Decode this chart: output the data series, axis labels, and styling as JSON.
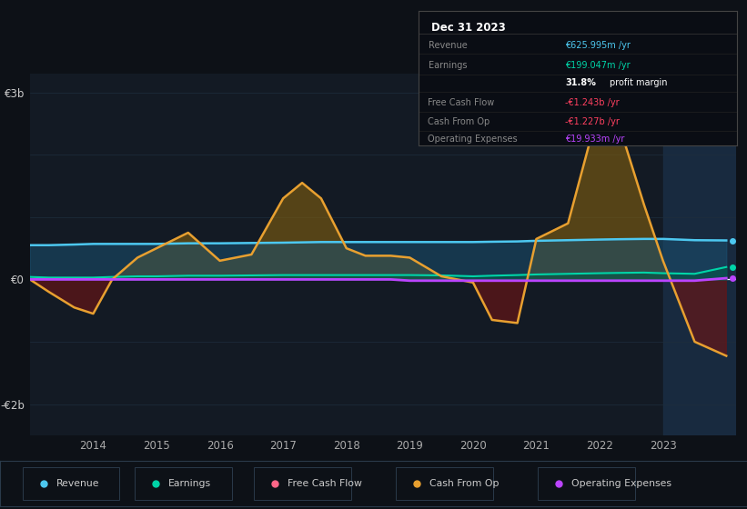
{
  "bg_color": "#0d1117",
  "plot_bg_color": "#131a24",
  "grid_color": "#1e2d3d",
  "years": [
    2013.0,
    2013.3,
    2013.7,
    2014.0,
    2014.3,
    2014.7,
    2015.0,
    2015.5,
    2016.0,
    2016.5,
    2017.0,
    2017.3,
    2017.6,
    2018.0,
    2018.3,
    2018.7,
    2019.0,
    2019.5,
    2020.0,
    2020.3,
    2020.7,
    2021.0,
    2021.5,
    2022.0,
    2022.3,
    2022.7,
    2023.0,
    2023.5,
    2024.0
  ],
  "revenue": [
    0.55,
    0.55,
    0.56,
    0.57,
    0.57,
    0.57,
    0.57,
    0.58,
    0.58,
    0.585,
    0.59,
    0.595,
    0.6,
    0.6,
    0.6,
    0.6,
    0.6,
    0.6,
    0.6,
    0.605,
    0.61,
    0.62,
    0.63,
    0.64,
    0.645,
    0.65,
    0.65,
    0.63,
    0.626
  ],
  "earnings": [
    0.04,
    0.03,
    0.03,
    0.03,
    0.04,
    0.05,
    0.05,
    0.06,
    0.06,
    0.065,
    0.07,
    0.07,
    0.07,
    0.07,
    0.07,
    0.07,
    0.07,
    0.065,
    0.05,
    0.06,
    0.07,
    0.08,
    0.09,
    0.1,
    0.105,
    0.11,
    0.1,
    0.09,
    0.199
  ],
  "cash_from_op": [
    0.0,
    -0.2,
    -0.45,
    -0.55,
    0.0,
    0.35,
    0.5,
    0.75,
    0.3,
    0.4,
    1.3,
    1.55,
    1.3,
    0.5,
    0.38,
    0.38,
    0.35,
    0.05,
    -0.05,
    -0.65,
    -0.7,
    0.65,
    0.9,
    2.8,
    2.5,
    1.2,
    0.3,
    -1.0,
    -1.227
  ],
  "free_cash_flow": [
    0.0,
    -0.2,
    -0.45,
    -0.55,
    0.0,
    0.32,
    0.47,
    0.72,
    0.27,
    0.37,
    1.25,
    1.5,
    1.25,
    0.47,
    0.35,
    0.35,
    0.3,
    0.02,
    -0.07,
    -0.67,
    -0.72,
    0.62,
    0.87,
    2.75,
    2.45,
    1.15,
    0.25,
    -1.05,
    -1.243
  ],
  "operating_expenses": [
    0.0,
    0.0,
    0.0,
    0.0,
    0.0,
    0.0,
    0.0,
    0.0,
    0.0,
    0.0,
    0.0,
    0.0,
    0.0,
    0.0,
    0.0,
    0.0,
    -0.02,
    -0.02,
    -0.02,
    -0.02,
    -0.02,
    -0.02,
    -0.02,
    -0.02,
    -0.02,
    -0.02,
    -0.02,
    -0.02,
    0.01993
  ],
  "revenue_color": "#4dc8f0",
  "earnings_color": "#00d4a8",
  "cash_from_op_color": "#e8a030",
  "free_cash_flow_color": "#ff4060",
  "operating_expenses_color": "#bb44ff",
  "revenue_fill_color": "#1a5070",
  "earnings_fill_color": "#005a48",
  "cash_from_op_fill_pos_color": "#7a5a10",
  "cash_from_op_fill_neg_color": "#6a1515",
  "ylim_min": -2.5,
  "ylim_max": 3.3,
  "ytick_vals": [
    -2,
    0,
    3
  ],
  "ytick_labels": [
    "-€2b",
    "€0",
    "€3b"
  ],
  "xtick_years": [
    2014,
    2015,
    2016,
    2017,
    2018,
    2019,
    2020,
    2021,
    2022,
    2023
  ],
  "legend_items": [
    "Revenue",
    "Earnings",
    "Free Cash Flow",
    "Cash From Op",
    "Operating Expenses"
  ],
  "legend_colors": [
    "#4dc8f0",
    "#00d4a8",
    "#ff6688",
    "#e8a030",
    "#bb44ff"
  ],
  "info_box": {
    "title": "Dec 31 2023",
    "rows": [
      {
        "label": "Revenue",
        "value": "€625.995m /yr",
        "value_color": "#4dc8f0"
      },
      {
        "label": "Earnings",
        "value": "€199.047m /yr",
        "value_color": "#00d4a8"
      },
      {
        "label": "",
        "value": "31.8% profit margin",
        "value_color": "#ffffff"
      },
      {
        "label": "Free Cash Flow",
        "value": "-€1.243b /yr",
        "value_color": "#ff4060"
      },
      {
        "label": "Cash From Op",
        "value": "-€1.227b /yr",
        "value_color": "#ff4060"
      },
      {
        "label": "Operating Expenses",
        "value": "€19.933m /yr",
        "value_color": "#bb44ff"
      }
    ]
  },
  "highlight_color": "#1a2e44"
}
